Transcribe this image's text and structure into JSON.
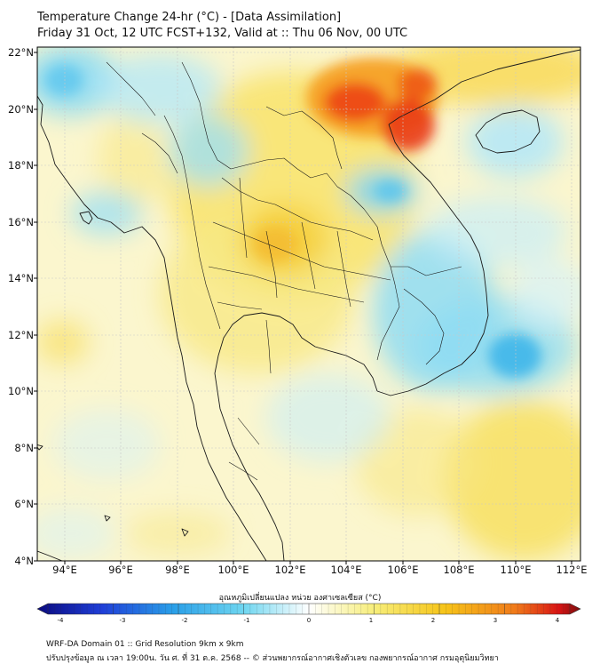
{
  "header": {
    "title_line1": "Temperature Change 24-hr (°C) - [Data Assimilation]",
    "title_line2": "Friday 31 Oct, 12 UTC FCST+132, Valid at :: Thu 06 Nov, 00 UTC"
  },
  "map": {
    "lat_labels": [
      "22°N",
      "20°N",
      "18°N",
      "16°N",
      "14°N",
      "12°N",
      "10°N",
      "8°N",
      "6°N",
      "4°N"
    ],
    "lon_labels": [
      "94°E",
      "96°E",
      "98°E",
      "100°E",
      "102°E",
      "104°E",
      "106°E",
      "108°E",
      "110°E",
      "112°E"
    ],
    "lat_range": [
      4,
      22
    ],
    "lon_range": [
      93,
      112.3
    ]
  },
  "colorbar": {
    "label": "อุณหภูมิเปลี่ยนแปลง หน่วย องศาเซลเซียส (°C)",
    "ticks": [
      "-4",
      "-3",
      "-2",
      "-1",
      "0",
      "1",
      "2",
      "3",
      "4"
    ],
    "min": -4,
    "max": 4,
    "colors": [
      "#0a0a80",
      "#1f3fd8",
      "#2a9fe8",
      "#6fd6f0",
      "#ffffff",
      "#f7ee7a",
      "#f6c419",
      "#f07a1a",
      "#d81414",
      "#7a0e0e"
    ]
  },
  "footer": {
    "line1": "WRF-DA Domain 01 :: Grid Resolution 9km x 9km",
    "line2": "ปรับปรุงข้อมูล ณ เวลา 19:00น. วัน ศ. ที่ 31 ต.ค. 2568 -- © ส่วนพยากรณ์อากาศเชิงตัวเลข กองพยากรณ์อากาศ กรมอุตุนิยมวิทยา"
  }
}
